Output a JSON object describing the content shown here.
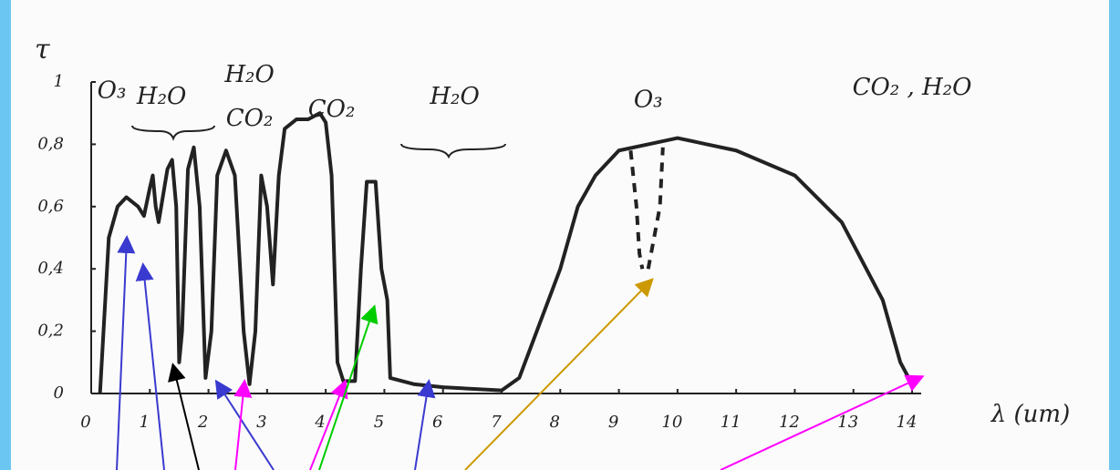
{
  "chart_data": {
    "type": "line",
    "y_label": "τ",
    "x_label": "λ (um)",
    "xlim": [
      0,
      14
    ],
    "ylim": [
      0,
      1
    ],
    "xticks": [
      0,
      1,
      2,
      3,
      4,
      5,
      6,
      7,
      8,
      9,
      10,
      11,
      12,
      13,
      14
    ],
    "yticks": [
      0,
      {
        "value": 0.2,
        "label": "0,2"
      },
      {
        "value": 0.4,
        "label": "0,4"
      },
      {
        "value": 0.6,
        "label": "0,6"
      },
      {
        "value": 0.8,
        "label": "0,8"
      },
      1
    ],
    "color": "#222222",
    "series": [
      {
        "x": [
          0.15,
          0.3,
          0.45,
          0.6,
          0.8,
          0.9,
          1.0,
          1.05,
          1.1,
          1.15,
          1.3,
          1.38,
          1.45,
          1.5,
          1.55,
          1.65,
          1.75,
          1.85,
          1.95,
          2.05,
          2.15,
          2.3,
          2.45,
          2.6,
          2.7,
          2.8,
          2.9,
          3.0,
          3.1,
          3.2,
          3.3,
          3.5,
          3.7,
          3.9,
          4.0,
          4.1,
          4.2,
          4.3,
          4.5,
          4.6,
          4.7,
          4.85,
          4.95,
          5.05,
          5.1,
          5.5,
          6.0,
          7.0,
          7.3,
          7.6,
          8.0,
          8.3,
          8.6,
          9.0,
          9.5,
          10.0,
          10.5,
          11.0,
          12.0,
          12.8,
          13.5,
          13.8,
          14.0
        ],
        "values": [
          0,
          0.5,
          0.6,
          0.63,
          0.6,
          0.57,
          0.66,
          0.7,
          0.6,
          0.55,
          0.72,
          0.75,
          0.6,
          0.1,
          0.2,
          0.72,
          0.79,
          0.6,
          0.05,
          0.2,
          0.7,
          0.78,
          0.7,
          0.2,
          0.03,
          0.2,
          0.7,
          0.6,
          0.35,
          0.7,
          0.85,
          0.88,
          0.88,
          0.9,
          0.87,
          0.7,
          0.1,
          0.04,
          0.04,
          0.4,
          0.68,
          0.68,
          0.4,
          0.3,
          0.05,
          0.03,
          0.02,
          0.01,
          0.05,
          0.2,
          0.4,
          0.6,
          0.7,
          0.78,
          0.8,
          0.82,
          0.8,
          0.78,
          0.7,
          0.55,
          0.3,
          0.1,
          0.03
        ],
        "dashed": false
      },
      {
        "x": [
          9.2,
          9.3,
          9.35,
          9.4,
          null,
          9.5,
          9.55,
          9.7,
          9.75
        ],
        "values": [
          0.78,
          0.6,
          0.45,
          0.4,
          null,
          0.4,
          0.45,
          0.6,
          0.79
        ],
        "dashed": true
      }
    ],
    "annotations": [
      {
        "text": "O₃",
        "x": 0.35,
        "y": 0.97
      },
      {
        "text": "H₂O",
        "x": 1.2,
        "y": 0.95
      },
      {
        "text": "H₂O",
        "x": 2.7,
        "y": 1.02
      },
      {
        "text": "CO₂",
        "x": 2.7,
        "y": 0.88
      },
      {
        "text": "CO₂",
        "x": 4.1,
        "y": 0.91
      },
      {
        "text": "H₂O",
        "x": 6.2,
        "y": 0.95
      },
      {
        "text": "O₃",
        "x": 9.5,
        "y": 0.94
      },
      {
        "text": "CO₂ , H₂O",
        "x": 14.0,
        "y": 0.98
      }
    ]
  }
}
